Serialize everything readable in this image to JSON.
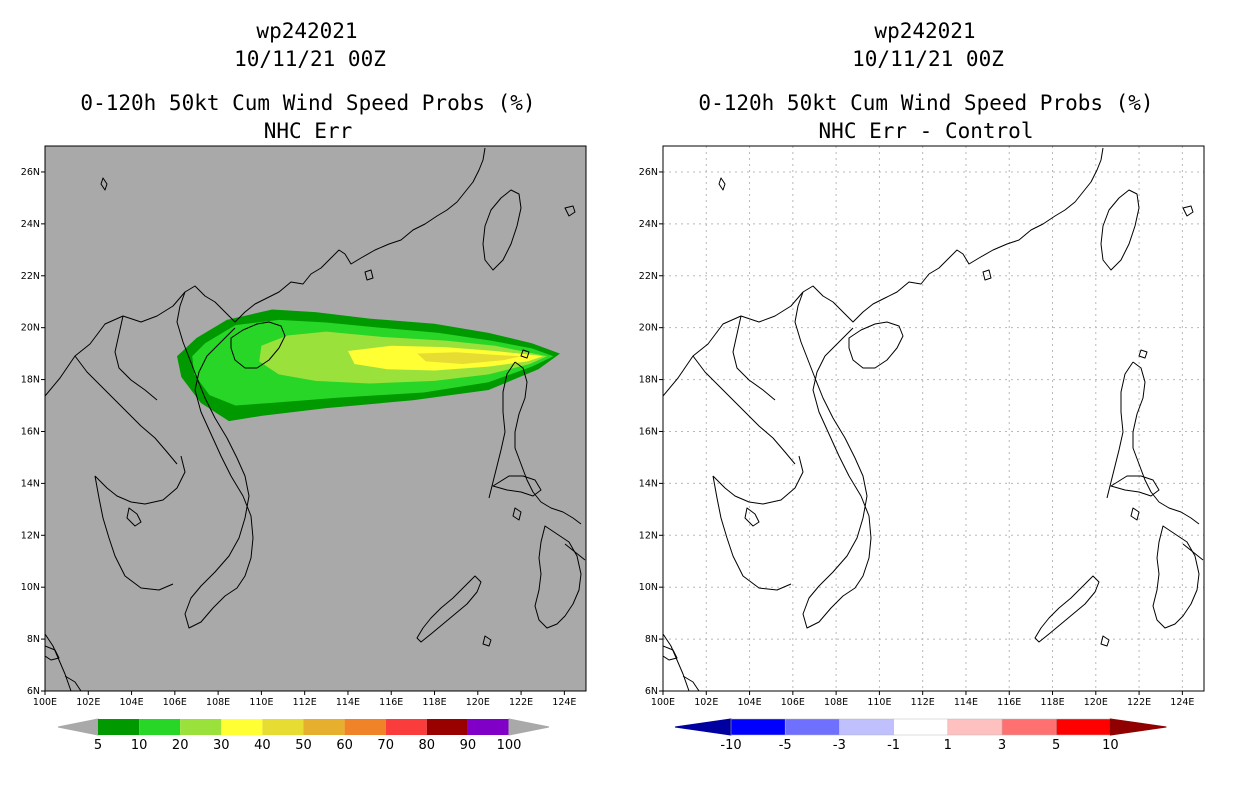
{
  "panels": [
    {
      "title_line1": "wp242021",
      "title_line2": "10/11/21 00Z",
      "title_line3": "0-120h 50kt Cum Wind Speed Probs (%)",
      "title_line4": "NHC Err"
    },
    {
      "title_line1": "wp242021",
      "title_line2": "10/11/21 00Z",
      "title_line3": "0-120h 50kt Cum Wind Speed Probs (%)",
      "title_line4": "NHC Err - Control"
    }
  ],
  "colors": {
    "land_bg": "#a9a9a9",
    "prob_levels": [
      "#009a00",
      "#27d627",
      "#9be13c",
      "#ffff33",
      "#e6dc32",
      "#e6af2d",
      "#f08228",
      "#fa3c3c",
      "#990000",
      "#8000c8"
    ],
    "diff_levels": [
      "#0000a0",
      "#0000ff",
      "#7070ff",
      "#c0c0ff",
      "#ffffff",
      "#ffc0c0",
      "#ff7070",
      "#ff0000",
      "#900000"
    ]
  },
  "chart_data": [
    {
      "type": "heatmap",
      "title": "0-120h 50kt Cum Wind Speed Probs (%)",
      "subtitle": "NHC Err",
      "storm": "wp242021",
      "date": "10/11/21 00Z",
      "x_ticks": [
        "100E",
        "102E",
        "104E",
        "106E",
        "108E",
        "110E",
        "112E",
        "114E",
        "116E",
        "118E",
        "120E",
        "122E",
        "124E"
      ],
      "y_ticks": [
        "6N",
        "8N",
        "10N",
        "12N",
        "14N",
        "16N",
        "18N",
        "20N",
        "22N",
        "24N",
        "26N"
      ],
      "xlim": [
        100,
        125
      ],
      "ylim": [
        6,
        27
      ],
      "colorbar_labels": [
        "5",
        "10",
        "20",
        "30",
        "40",
        "50",
        "60",
        "70",
        "80",
        "90",
        "100"
      ],
      "contours": [
        {
          "level": 5,
          "points": [
            [
              107.0,
              19.6
            ],
            [
              108.4,
              20.3
            ],
            [
              110.5,
              20.7
            ],
            [
              112.5,
              20.6
            ],
            [
              115,
              20.35
            ],
            [
              118,
              20.15
            ],
            [
              120.5,
              19.8
            ],
            [
              122.5,
              19.4
            ],
            [
              123.8,
              19.0
            ],
            [
              122.8,
              18.4
            ],
            [
              120.5,
              17.6
            ],
            [
              117,
              17.2
            ],
            [
              113,
              16.9
            ],
            [
              110,
              16.6
            ],
            [
              108.5,
              16.4
            ],
            [
              107.2,
              17.1
            ],
            [
              106.3,
              18.1
            ],
            [
              106.1,
              18.9
            ]
          ]
        },
        {
          "level": 10,
          "points": [
            [
              107.4,
              19.4
            ],
            [
              108.8,
              20.1
            ],
            [
              110.8,
              20.3
            ],
            [
              113,
              20.2
            ],
            [
              115.5,
              20.0
            ],
            [
              118.2,
              19.8
            ],
            [
              120.6,
              19.5
            ],
            [
              122.5,
              19.2
            ],
            [
              123.5,
              18.9
            ],
            [
              122.5,
              18.5
            ],
            [
              120.5,
              17.9
            ],
            [
              117.5,
              17.5
            ],
            [
              113.5,
              17.3
            ],
            [
              110.5,
              17.1
            ],
            [
              108.8,
              17.0
            ],
            [
              107.6,
              17.4
            ],
            [
              106.9,
              18.2
            ],
            [
              106.8,
              18.9
            ]
          ]
        },
        {
          "level": 20,
          "points": [
            [
              110.0,
              19.3
            ],
            [
              111.2,
              19.7
            ],
            [
              113,
              19.85
            ],
            [
              115.5,
              19.65
            ],
            [
              118.5,
              19.5
            ],
            [
              120.8,
              19.3
            ],
            [
              122.6,
              19.0
            ],
            [
              123.2,
              18.9
            ],
            [
              122.4,
              18.6
            ],
            [
              120.5,
              18.2
            ],
            [
              118,
              17.95
            ],
            [
              115,
              17.85
            ],
            [
              112.5,
              17.95
            ],
            [
              110.8,
              18.2
            ],
            [
              109.9,
              18.7
            ]
          ]
        },
        {
          "level": 30,
          "points": [
            [
              114.0,
              19.1
            ],
            [
              116,
              19.3
            ],
            [
              118.5,
              19.25
            ],
            [
              120.8,
              19.1
            ],
            [
              122.5,
              18.95
            ],
            [
              123.0,
              18.9
            ],
            [
              122.3,
              18.7
            ],
            [
              120.5,
              18.5
            ],
            [
              118,
              18.35
            ],
            [
              115.8,
              18.4
            ],
            [
              114.3,
              18.6
            ]
          ]
        },
        {
          "level": 40,
          "points": [
            [
              117.2,
              19.0
            ],
            [
              119,
              19.05
            ],
            [
              120.8,
              18.95
            ],
            [
              122.0,
              18.9
            ],
            [
              121.2,
              18.75
            ],
            [
              119.3,
              18.6
            ],
            [
              117.6,
              18.7
            ]
          ]
        }
      ]
    },
    {
      "type": "heatmap",
      "title": "0-120h 50kt Cum Wind Speed Probs (%)",
      "subtitle": "NHC Err - Control",
      "storm": "wp242021",
      "date": "10/11/21 00Z",
      "x_ticks": [
        "100E",
        "102E",
        "104E",
        "106E",
        "108E",
        "110E",
        "112E",
        "114E",
        "116E",
        "118E",
        "120E",
        "122E",
        "124E"
      ],
      "y_ticks": [
        "6N",
        "8N",
        "10N",
        "12N",
        "14N",
        "16N",
        "18N",
        "20N",
        "22N",
        "24N",
        "26N"
      ],
      "xlim": [
        100,
        125
      ],
      "ylim": [
        6,
        27
      ],
      "grid": true,
      "colorbar_labels": [
        "-10",
        "-5",
        "-3",
        "-1",
        "1",
        "3",
        "5",
        "10"
      ],
      "contours": []
    }
  ]
}
